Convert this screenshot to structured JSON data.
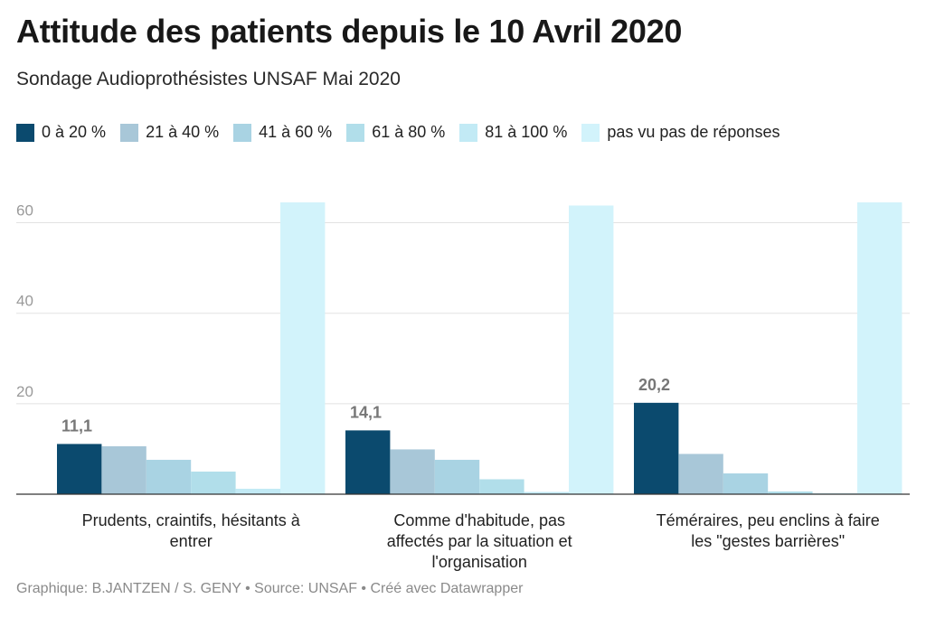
{
  "chart_data": {
    "type": "bar",
    "title": "Attitude des patients depuis le 10 Avril 2020",
    "subtitle": "Sondage Audioprothésistes UNSAF Mai 2020",
    "footer": "Graphique: B.JANTZEN / S. GENY • Source: UNSAF • Créé avec Datawrapper",
    "categories": [
      [
        "Prudents, craintifs, hésitants à",
        "entrer"
      ],
      [
        "Comme d'habitude, pas",
        "affectés par la situation et",
        "l'organisation"
      ],
      [
        "Téméraires, peu enclins à faire",
        "les \"gestes barrières\""
      ]
    ],
    "series": [
      {
        "name": "0 à 20 %",
        "color": "#0b4a6e",
        "values": [
          11.1,
          14.1,
          20.2
        ]
      },
      {
        "name": "21 à 40 %",
        "color": "#a8c7d8",
        "values": [
          10.6,
          9.9,
          8.9
        ]
      },
      {
        "name": "41 à 60 %",
        "color": "#a9d3e3",
        "values": [
          7.6,
          7.6,
          4.6
        ]
      },
      {
        "name": "61 à 80 %",
        "color": "#b1deea",
        "values": [
          5.0,
          3.3,
          0.6
        ]
      },
      {
        "name": "81 à 100 %",
        "color": "#c2eaf5",
        "values": [
          1.2,
          0.5,
          0.2
        ]
      },
      {
        "name": "pas vu pas de réponses",
        "color": "#d2f3fb",
        "values": [
          64.5,
          63.8,
          64.5
        ]
      }
    ],
    "data_labels": [
      {
        "series": 0,
        "category": 0,
        "text": "11,1"
      },
      {
        "series": 0,
        "category": 1,
        "text": "14,1"
      },
      {
        "series": 0,
        "category": 2,
        "text": "20,2"
      }
    ],
    "y_ticks": [
      20,
      40,
      60
    ],
    "ylim": [
      0,
      64.5
    ],
    "xlabel": "",
    "ylabel": "",
    "grid": true,
    "legend_position": "top-left"
  }
}
